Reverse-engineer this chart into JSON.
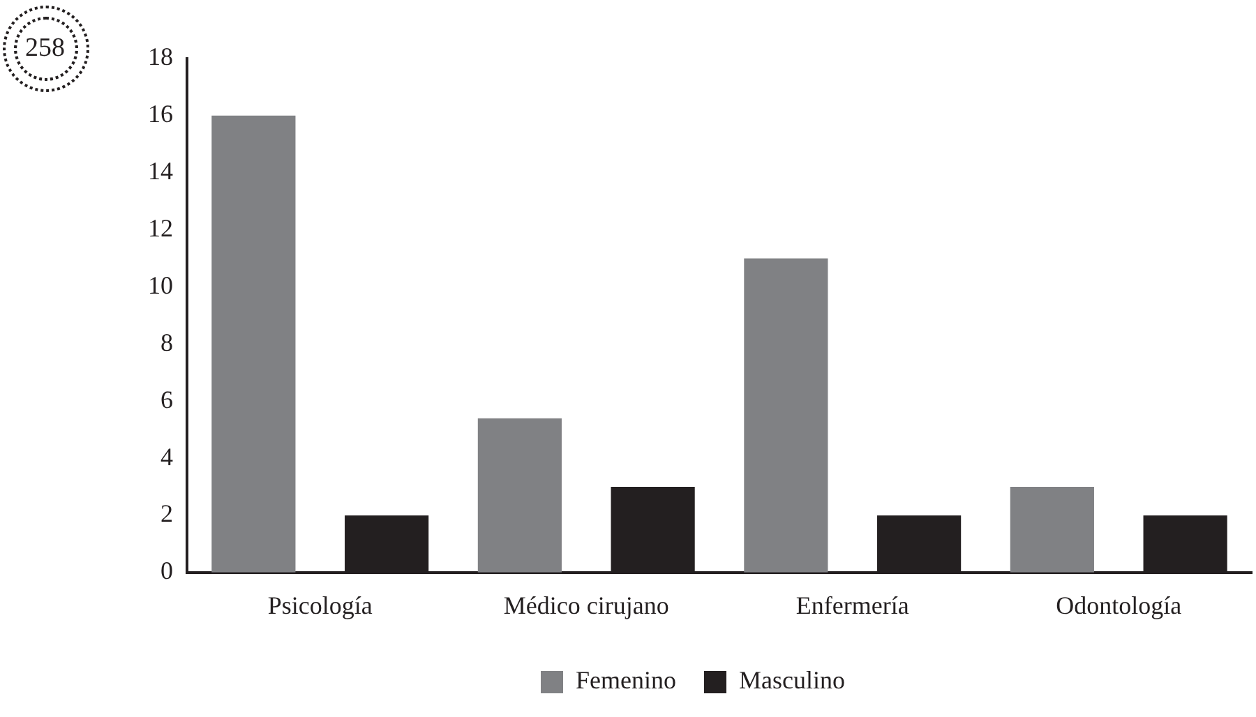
{
  "chart_data": {
    "type": "bar",
    "categories": [
      "Psicología",
      "Médico cirujano",
      "Enfermería",
      "Odontología"
    ],
    "series": [
      {
        "name": "Femenino",
        "color": "#808184",
        "values": [
          16,
          5.4,
          11,
          3
        ]
      },
      {
        "name": "Masculino",
        "color": "#231f20",
        "values": [
          2,
          3,
          2,
          2
        ]
      }
    ],
    "ylim": [
      0,
      18
    ],
    "yticks": [
      0,
      2,
      4,
      6,
      8,
      10,
      12,
      14,
      16,
      18
    ],
    "grid": false,
    "legend": "bottom",
    "annotations": [
      "258"
    ]
  }
}
